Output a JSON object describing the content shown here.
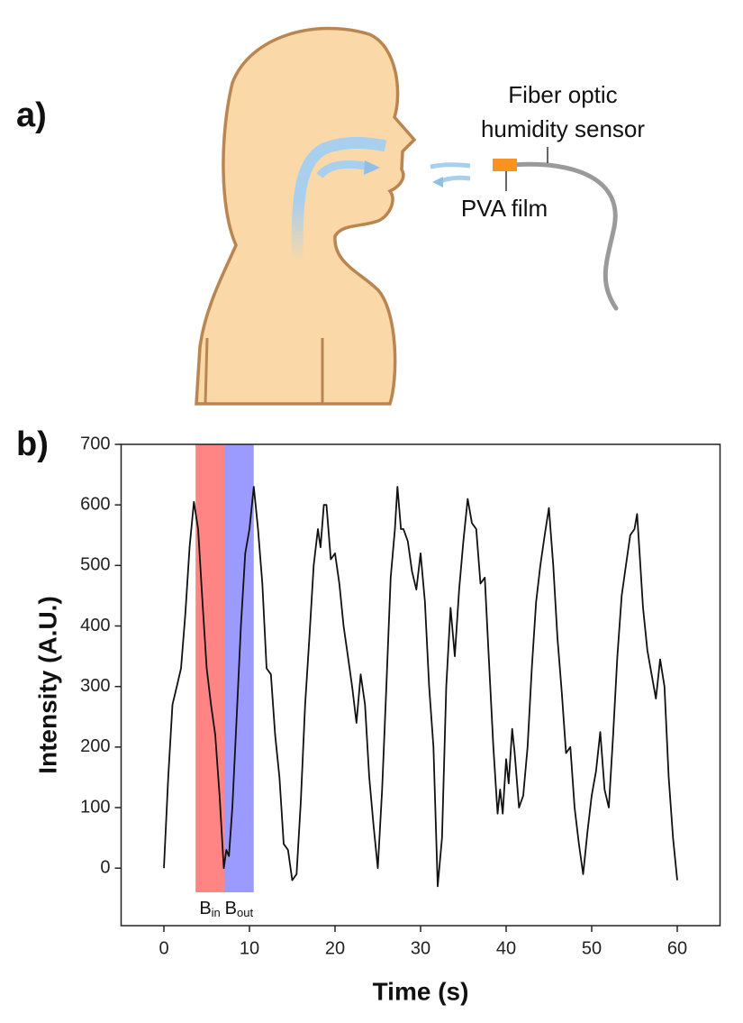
{
  "panel_a": {
    "label": "a)",
    "sensor_label": [
      "Fiber optic",
      "humidity sensor"
    ],
    "film_label": "PVA film"
  },
  "panel_b_label": "b)",
  "chart_data": {
    "type": "line",
    "x_label": "Time (s)",
    "y_label": "Intensity (A.U.)",
    "xlim": [
      -5,
      65
    ],
    "ylim": [
      -95,
      700
    ],
    "xticks": [
      0,
      10,
      20,
      30,
      40,
      50,
      60
    ],
    "yticks": [
      0,
      100,
      200,
      300,
      400,
      500,
      600,
      700
    ],
    "color": "#111111",
    "bands": [
      {
        "label": "B",
        "subscript": "in",
        "x_range": [
          3.7,
          7.05
        ],
        "color": "#ff8585"
      },
      {
        "label": "B",
        "subscript": "out",
        "x_range": [
          7.05,
          10.5
        ],
        "color": "#9a9aff"
      }
    ],
    "x": [
      0,
      0.5,
      1,
      1.5,
      2,
      2.5,
      3,
      3.5,
      4,
      4.5,
      5,
      5.5,
      6,
      6.5,
      7,
      7.3,
      7.6,
      8,
      8.5,
      9,
      9.5,
      10,
      10.5,
      11,
      11.5,
      12,
      12.5,
      13,
      13.5,
      14,
      14.5,
      15,
      15.5,
      16,
      16.5,
      17,
      17.5,
      18,
      18.3,
      18.7,
      19,
      19.5,
      20,
      20.5,
      21,
      21.5,
      22,
      22.5,
      23,
      23.5,
      24,
      24.5,
      25,
      25.5,
      26,
      26.5,
      27,
      27.3,
      27.7,
      28,
      28.5,
      29,
      29.5,
      30,
      30.5,
      31,
      31.5,
      32,
      32.5,
      33,
      33.5,
      34,
      34.5,
      35,
      35.5,
      36,
      36.5,
      37,
      37.5,
      38,
      38.5,
      39,
      39.3,
      39.6,
      40,
      40.3,
      40.7,
      41,
      41.5,
      42,
      42.5,
      43,
      43.5,
      44,
      44.5,
      45,
      45.5,
      46,
      46.5,
      47,
      47.5,
      48,
      48.5,
      49,
      49.5,
      50,
      50.5,
      51,
      51.5,
      52,
      52.5,
      53,
      53.5,
      54,
      54.5,
      55,
      55.3,
      55.6,
      56,
      56.5,
      57,
      57.5,
      58,
      58.5,
      59,
      59.5,
      60
    ],
    "values": [
      0,
      150,
      270,
      300,
      330,
      420,
      530,
      605,
      560,
      440,
      330,
      270,
      220,
      120,
      0,
      30,
      20,
      100,
      250,
      400,
      520,
      560,
      630,
      560,
      470,
      330,
      320,
      220,
      150,
      40,
      30,
      -20,
      -10,
      110,
      270,
      380,
      500,
      560,
      530,
      600,
      600,
      510,
      520,
      470,
      400,
      350,
      300,
      240,
      320,
      270,
      150,
      70,
      0,
      130,
      300,
      480,
      560,
      630,
      560,
      560,
      540,
      490,
      460,
      520,
      440,
      300,
      200,
      -30,
      50,
      300,
      430,
      350,
      460,
      540,
      610,
      570,
      560,
      470,
      480,
      340,
      200,
      90,
      130,
      90,
      180,
      140,
      230,
      190,
      100,
      120,
      200,
      330,
      440,
      500,
      550,
      595,
      500,
      380,
      290,
      190,
      200,
      100,
      40,
      -10,
      60,
      120,
      160,
      225,
      130,
      100,
      220,
      350,
      450,
      500,
      550,
      560,
      585,
      520,
      430,
      360,
      320,
      280,
      345,
      300,
      150,
      50,
      -20
    ]
  }
}
